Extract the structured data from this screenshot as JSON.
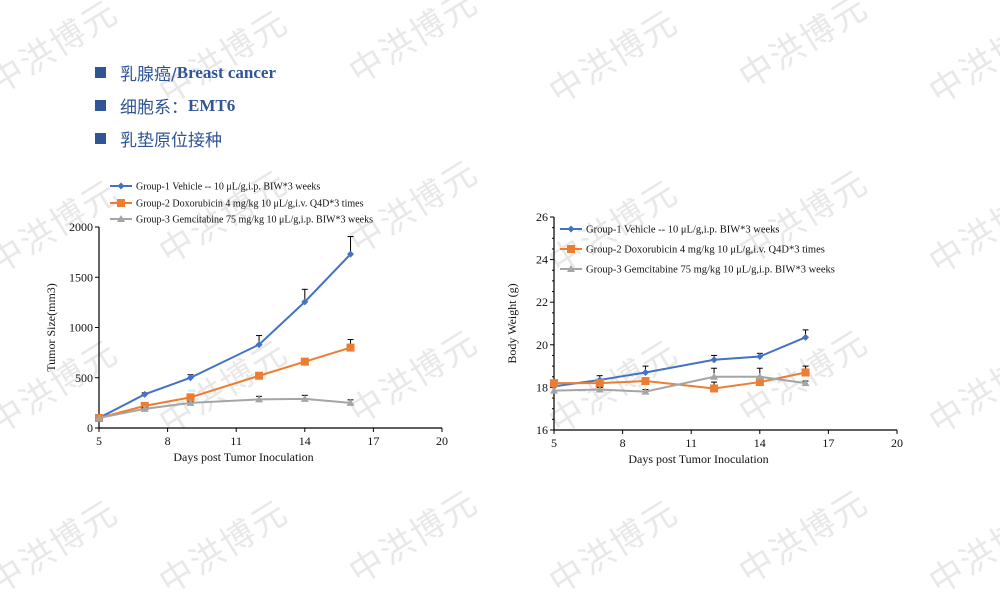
{
  "watermark": "中洪博元",
  "bullets": [
    {
      "cn": "乳腺癌/",
      "en": "Breast cancer"
    },
    {
      "cn": "细胞系：",
      "en": "EMT6"
    },
    {
      "cn": "乳垫原位接种",
      "en": ""
    }
  ],
  "colors": {
    "group1": "#4472c4",
    "group2": "#ed7d31",
    "group3": "#a5a5a5",
    "accent": "#2f5597"
  },
  "chart_data": [
    {
      "type": "line",
      "title": "",
      "xlabel": "Days post Tumor Inoculation",
      "ylabel": "Tumor Size(mm3)",
      "xlim": [
        5,
        20
      ],
      "ylim": [
        0,
        2000
      ],
      "xticks": [
        5,
        8,
        11,
        14,
        17,
        20
      ],
      "yticks": [
        0,
        500,
        1000,
        1500,
        2000
      ],
      "legend": "top-left",
      "x": [
        5,
        7,
        9,
        12,
        14,
        16
      ],
      "series": [
        {
          "name": "Group-1 Vehicle -- 10 μL/g,i.p. BIW*3 weeks",
          "marker": "diamond",
          "values": [
            100,
            335,
            500,
            830,
            1255,
            1730
          ],
          "errors": [
            0,
            15,
            30,
            90,
            125,
            175
          ]
        },
        {
          "name": "Group-2 Doxorubicin 4 mg/kg 10 μL/g,i.v. Q4D*3 times",
          "marker": "square",
          "values": [
            100,
            220,
            305,
            520,
            660,
            800
          ],
          "errors": [
            0,
            10,
            10,
            30,
            30,
            80
          ]
        },
        {
          "name": "Group-3 Gemcitabine 75 mg/kg 10 μL/g,i.p. BIW*3 weeks",
          "marker": "triangle",
          "values": [
            100,
            190,
            250,
            285,
            290,
            250
          ],
          "errors": [
            0,
            10,
            10,
            30,
            35,
            30
          ]
        }
      ]
    },
    {
      "type": "line",
      "title": "",
      "xlabel": "Days post Tumor Inoculation",
      "ylabel": "Body Weight (g)",
      "xlim": [
        5,
        20
      ],
      "ylim": [
        16,
        26
      ],
      "xticks": [
        5,
        8,
        11,
        14,
        17,
        20
      ],
      "yticks": [
        16,
        18,
        20,
        22,
        24,
        26
      ],
      "legend": "top-left",
      "x": [
        5,
        7,
        9,
        12,
        14,
        16
      ],
      "series": [
        {
          "name": "Group-1 Vehicle -- 10 μL/g,i.p. BIW*3 weeks",
          "marker": "diamond",
          "values": [
            18.05,
            18.35,
            18.7,
            19.3,
            19.45,
            20.35
          ],
          "errors": [
            0,
            0.2,
            0.3,
            0.2,
            0.15,
            0.35
          ]
        },
        {
          "name": "Group-2 Doxorubicin 4 mg/kg 10 μL/g,i.v. Q4D*3 times",
          "marker": "square",
          "values": [
            18.2,
            18.2,
            18.3,
            17.95,
            18.25,
            18.7
          ],
          "errors": [
            0,
            0.1,
            0.1,
            0.3,
            0.1,
            0.3
          ]
        },
        {
          "name": "Group-3 Gemcitabine 75 mg/kg 10 μL/g,i.p. BIW*3 weeks",
          "marker": "triangle",
          "values": [
            17.85,
            17.9,
            17.8,
            18.5,
            18.5,
            18.2
          ],
          "errors": [
            0,
            0.1,
            0.1,
            0.4,
            0.4,
            0.1
          ]
        }
      ]
    }
  ]
}
